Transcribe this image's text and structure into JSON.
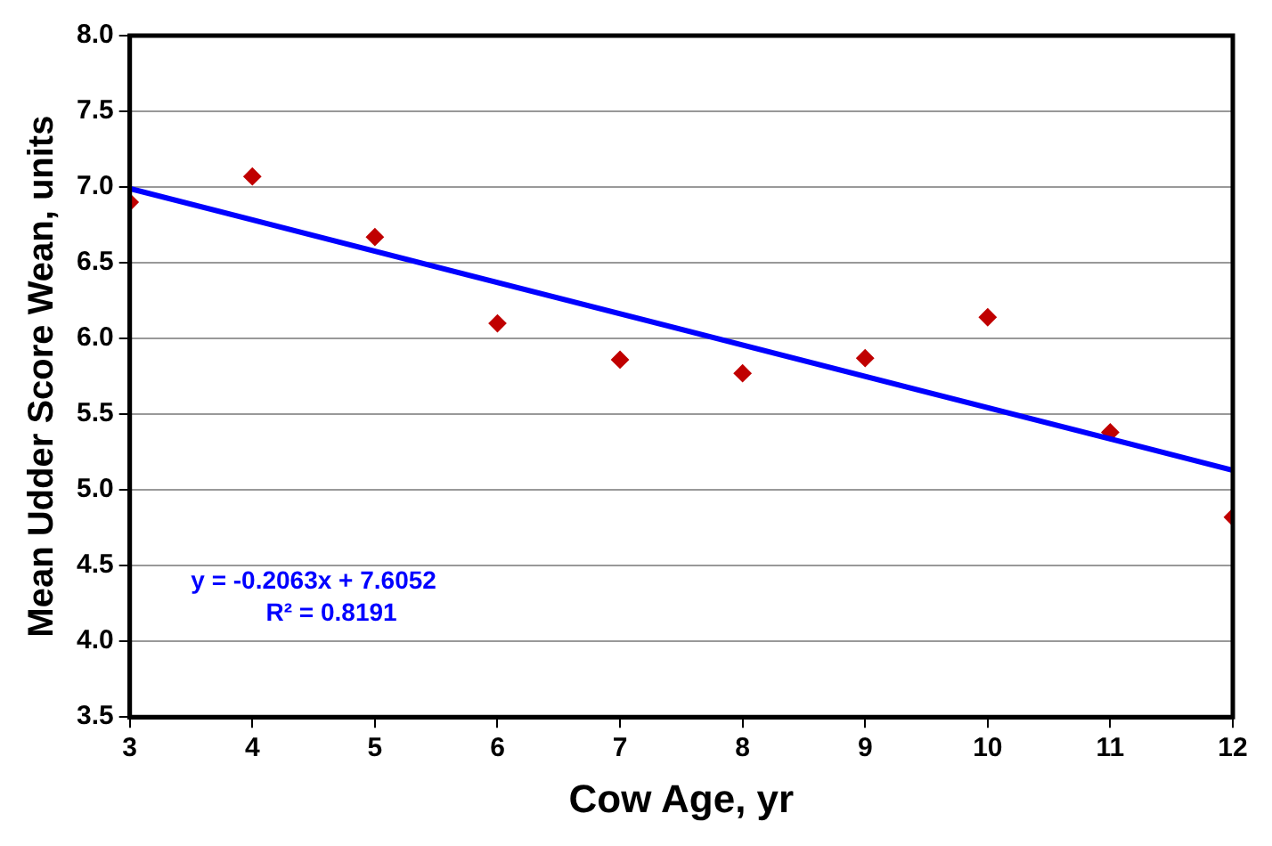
{
  "chart_data": {
    "type": "scatter",
    "xlabel": "Cow Age, yr",
    "ylabel": "Mean Udder Score Wean, units",
    "x": [
      3,
      4,
      5,
      6,
      7,
      8,
      9,
      10,
      11,
      12
    ],
    "series": [
      {
        "color": "#c00000",
        "marker": "diamond",
        "values": [
          6.9,
          7.07,
          6.67,
          6.1,
          5.86,
          5.77,
          5.87,
          6.14,
          5.38,
          4.82
        ]
      },
      {
        "type": "line",
        "color": "#0000ff",
        "marker": "none",
        "line_style": "solid",
        "x": [
          3,
          12
        ],
        "values": [
          6.99,
          5.13
        ]
      }
    ],
    "xlim": [
      3,
      12
    ],
    "xticks": [
      3,
      4,
      5,
      6,
      7,
      8,
      9,
      10,
      11,
      12
    ],
    "ylim": [
      3.5,
      8
    ],
    "yticks": [
      {
        "value": 3.5,
        "label": "3.5"
      },
      {
        "value": 4,
        "label": "4.0"
      },
      {
        "value": 4.5,
        "label": "4.5"
      },
      {
        "value": 5,
        "label": "5.0"
      },
      {
        "value": 5.5,
        "label": "5.5"
      },
      {
        "value": 6,
        "label": "6.0"
      },
      {
        "value": 6.5,
        "label": "6.5"
      },
      {
        "value": 7,
        "label": "7.0"
      },
      {
        "value": 7.5,
        "label": "7.5"
      },
      {
        "value": 8,
        "label": "8.0"
      }
    ],
    "grid": "y",
    "legend": false,
    "annotations": [
      "y = -0.2063x + 7.6052",
      "R² = 0.8191"
    ]
  }
}
